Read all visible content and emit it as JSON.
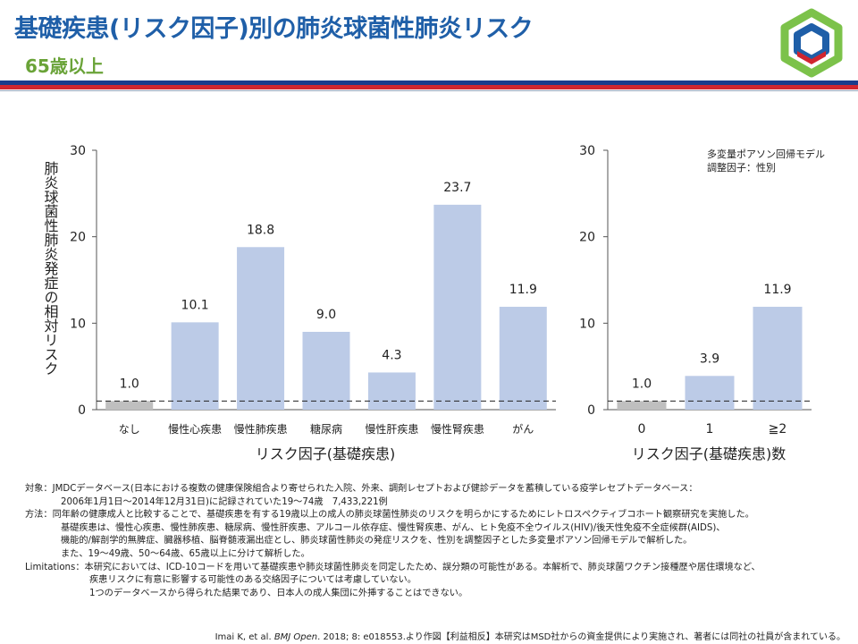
{
  "header": {
    "title": "基礎疾患(リスク因子)別の肺炎球菌性肺炎リスク",
    "subtitle": "65歳以上"
  },
  "colors": {
    "bar": "#bccbe7",
    "bar_ref": "#bfbfbf",
    "title": "#1f5fa8",
    "subtitle": "#6aa338"
  },
  "logo": {
    "icon": "hexagon-ring-logo-icon"
  },
  "chart_data": [
    {
      "type": "bar",
      "ylabel": "肺炎球菌性肺炎発症の相対リスク",
      "xlabel": "リスク因子(基礎疾患)",
      "categories": [
        "なし",
        "慢性心疾患",
        "慢性肺疾患",
        "糖尿病",
        "慢性肝疾患",
        "慢性腎疾患",
        "がん"
      ],
      "values": [
        1.0,
        10.1,
        18.8,
        9.0,
        4.3,
        23.7,
        11.9
      ],
      "value_labels": [
        "1.0",
        "10.1",
        "18.8",
        "9.0",
        "4.3",
        "23.7",
        "11.9"
      ],
      "yticks": [
        "0",
        "10",
        "20",
        "30"
      ],
      "ylim": [
        0,
        30
      ],
      "reference_line": 1,
      "grid": false
    },
    {
      "type": "bar",
      "xlabel": "リスク因子(基礎疾患)数",
      "categories": [
        "0",
        "1",
        "≧2"
      ],
      "values": [
        1.0,
        3.9,
        11.9
      ],
      "value_labels": [
        "1.0",
        "3.9",
        "11.9"
      ],
      "yticks": [
        "0",
        "10",
        "20",
        "30"
      ],
      "ylim": [
        0,
        30
      ],
      "reference_line": 1,
      "annotation": [
        "多変量ポアソン回帰モデル",
        "調整因子：性別"
      ],
      "grid": false
    }
  ],
  "notes": {
    "target_label": "対象：",
    "target_text": "JMDCデータベース(日本における複数の健康保険組合より寄せられた入院、外来、調剤レセプトおよび健診データを蓄積している疫学レセプトデータベース：",
    "target_text2": "2006年1月1日～2014年12月31日)に記録されていた19～74歳　7,433,221例",
    "method_label": "方法：",
    "method_text": "同年齢の健康成人と比較することで、基礎疾患を有する19歳以上の成人の肺炎球菌性肺炎のリスクを明らかにするためにレトロスペクティブコホート観察研究を実施した。",
    "method_text2": "基礎疾患は、慢性心疾患、慢性肺疾患、糖尿病、慢性肝疾患、アルコール依存症、慢性腎疾患、がん、ヒト免疫不全ウイルス(HIV)/後天性免疫不全症候群(AIDS)、",
    "method_text3": "機能的/解剖学的無脾症、臓器移植、脳脊髄液漏出症とし、肺炎球菌性肺炎の発症リスクを、性別を調整因子とした多変量ポアソン回帰モデルで解析した。",
    "method_text4": "また、19～49歳、50～64歳、65歳以上に分けて解析した。",
    "limit_label": "Limitations：",
    "limit_text": "本研究においては、ICD-10コードを用いて基礎疾患や肺炎球菌性肺炎を同定したため、誤分類の可能性がある。本解析で、肺炎球菌ワクチン接種歴や居住環境など、",
    "limit_text2": "疾患リスクに有意に影響する可能性のある交絡因子については考慮していない。",
    "limit_text3": "1つのデータベースから得られた結果であり、日本人の成人集団に外挿することはできない。"
  },
  "citation": {
    "authors": "Imai K, et al.",
    "journal": "BMJ Open",
    "rest": ". 2018; 8: e018553.より作図【利益相反】本研究はMSD社からの資金提供により実施され、著者には同社の社員が含まれている。"
  }
}
